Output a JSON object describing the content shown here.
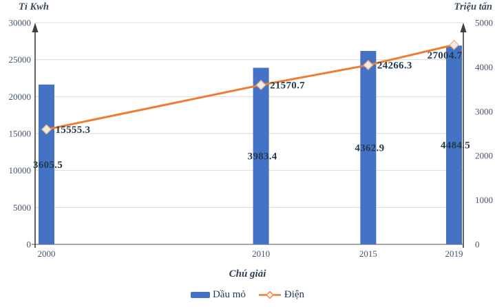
{
  "chart_data": {
    "type": "bar+line",
    "categories": [
      2000,
      2010,
      2015,
      2019
    ],
    "series": [
      {
        "name": "Dầu mỏ",
        "type": "bar",
        "axis": "right",
        "color": "#4472C4",
        "values": [
          3605.5,
          3983.4,
          4362.9,
          4484.5
        ]
      },
      {
        "name": "Điện",
        "type": "line",
        "axis": "left",
        "color": "#ED7D31",
        "marker": "diamond",
        "values": [
          15555.3,
          21570.7,
          24266.3,
          27004.7
        ]
      }
    ],
    "left_axis": {
      "title": "Tỉ Kwh",
      "min": 0,
      "max": 30000,
      "step": 5000,
      "ticks": [
        0,
        5000,
        10000,
        15000,
        20000,
        25000,
        30000
      ]
    },
    "right_axis": {
      "title": "Triệu tấn",
      "min": 0,
      "max": 5000,
      "step": 1000,
      "ticks": [
        0,
        1000,
        2000,
        3000,
        4000,
        5000
      ]
    },
    "x_axis": {
      "labels": [
        "2000",
        "2010",
        "2015",
        "2019"
      ]
    },
    "legend": {
      "title": "Chú giải",
      "position": "bottom",
      "items": [
        {
          "label": "Dầu mỏ",
          "swatch": "bar",
          "color": "#4472C4"
        },
        {
          "label": "Điện",
          "swatch": "line-diamond",
          "color": "#ED7D31"
        }
      ]
    },
    "grid": true,
    "data_labels": true,
    "colors": {
      "bar": "#4472C4",
      "line": "#ED7D31",
      "marker_fill": "#f3ece5",
      "marker_stroke": "#f0bc94",
      "grid": "#d9d9d9",
      "x_axis_line": "#a6a6a6",
      "axis_line": "#3f3f3f",
      "tick_text": "#44546a",
      "data_label_text": "#243850"
    }
  }
}
